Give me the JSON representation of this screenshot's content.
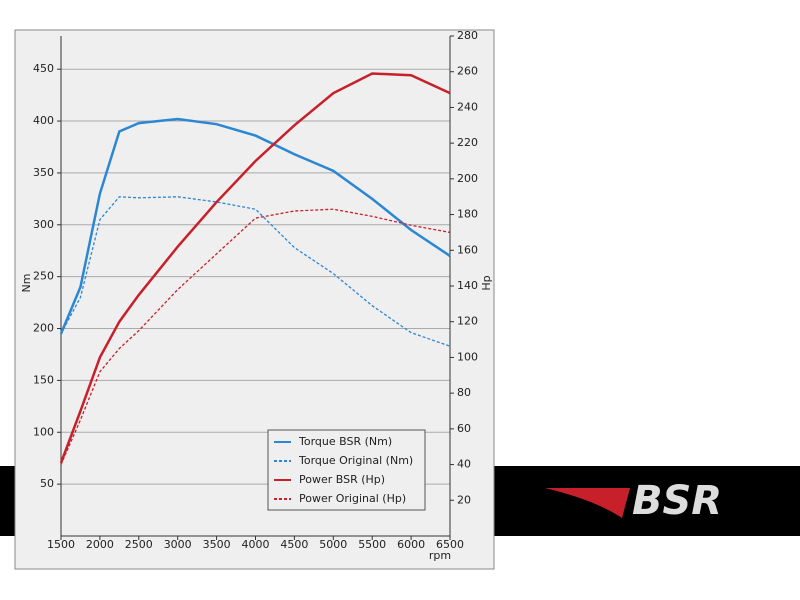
{
  "chart_data": {
    "type": "line",
    "x": [
      1500,
      1750,
      2000,
      2250,
      2500,
      3000,
      3500,
      4000,
      4500,
      5000,
      5500,
      6000,
      6500
    ],
    "series": [
      {
        "name": "Torque BSR (Nm)",
        "color": "#2b86d4",
        "dash": false,
        "axis": "y",
        "values": [
          195,
          240,
          330,
          390,
          398,
          402,
          397,
          386,
          368,
          352,
          325,
          295,
          270
        ]
      },
      {
        "name": "Torque Original (Nm)",
        "color": "#2b86d4",
        "dash": true,
        "axis": "y",
        "values": [
          195,
          230,
          305,
          327,
          326,
          327,
          322,
          315,
          278,
          253,
          222,
          196,
          183
        ]
      },
      {
        "name": "Power BSR (Hp)",
        "color": "#c8202a",
        "dash": false,
        "axis": "y2",
        "values": [
          41,
          70,
          100,
          120,
          135,
          162,
          187,
          210,
          230,
          248,
          259,
          258,
          248
        ]
      },
      {
        "name": "Power Original (Hp)",
        "color": "#c8202a",
        "dash": true,
        "axis": "y2",
        "values": [
          40,
          65,
          92,
          105,
          115,
          138,
          158,
          178,
          182,
          183,
          179,
          174,
          170
        ]
      }
    ],
    "xlim": [
      1500,
      6500
    ],
    "xticks": [
      1500,
      2000,
      2500,
      3000,
      3500,
      4000,
      4500,
      5000,
      5500,
      6000,
      6500
    ],
    "ylim": [
      0,
      482
    ],
    "yticks": [
      50,
      100,
      150,
      200,
      250,
      300,
      350,
      400,
      450
    ],
    "y2lim": [
      0,
      280
    ],
    "y2ticks": [
      20,
      40,
      60,
      80,
      100,
      120,
      140,
      160,
      180,
      200,
      220,
      240,
      260,
      280
    ],
    "x_label": "rpm",
    "y_label": "Nm",
    "y2_label": "Hp",
    "grid": true
  },
  "logo": {
    "text": "BSR"
  }
}
